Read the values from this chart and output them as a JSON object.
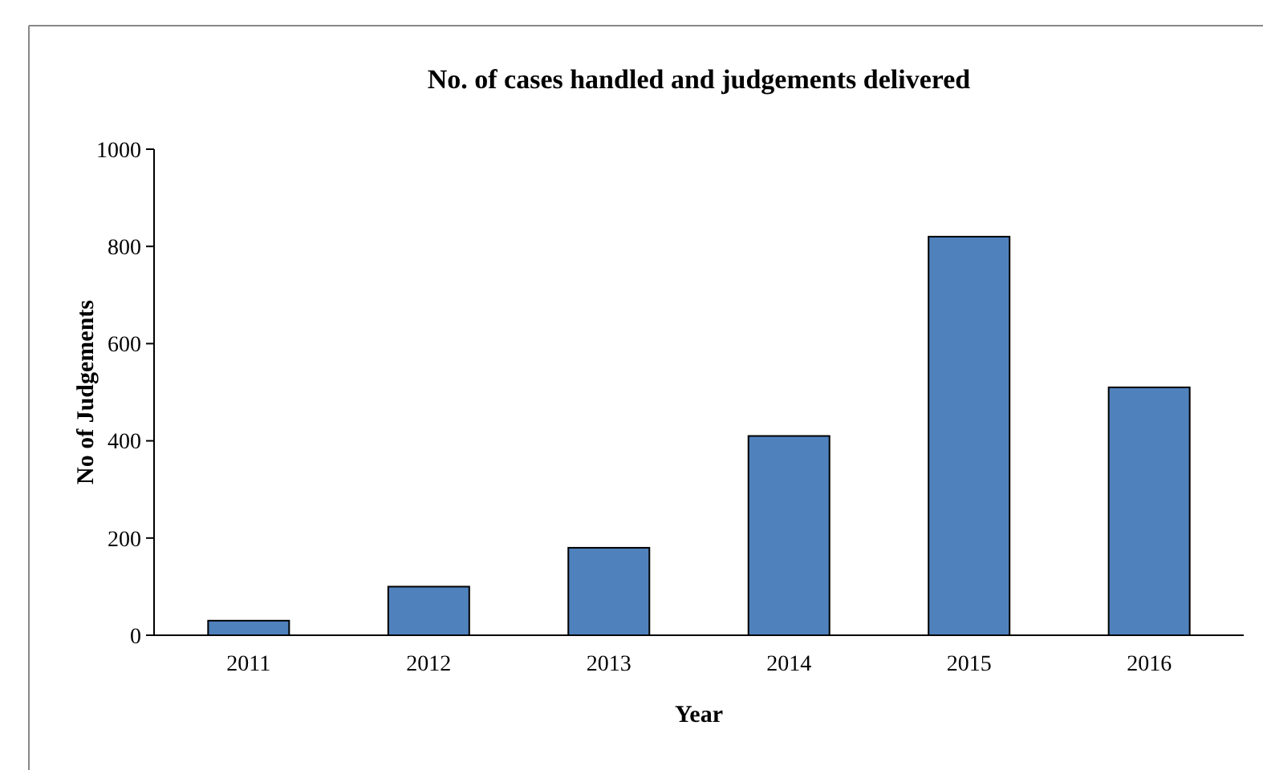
{
  "chart_data": {
    "type": "bar",
    "title": "No. of cases handled and judgements delivered",
    "xlabel": "Year",
    "ylabel": "No of Judgements",
    "categories": [
      "2011",
      "2012",
      "2013",
      "2014",
      "2015",
      "2016"
    ],
    "values": [
      30,
      100,
      180,
      410,
      820,
      510
    ],
    "color": "#4f81bd",
    "ylim": [
      0,
      1000
    ],
    "yticks": [
      0,
      200,
      400,
      600,
      800,
      1000
    ],
    "grid": false
  }
}
